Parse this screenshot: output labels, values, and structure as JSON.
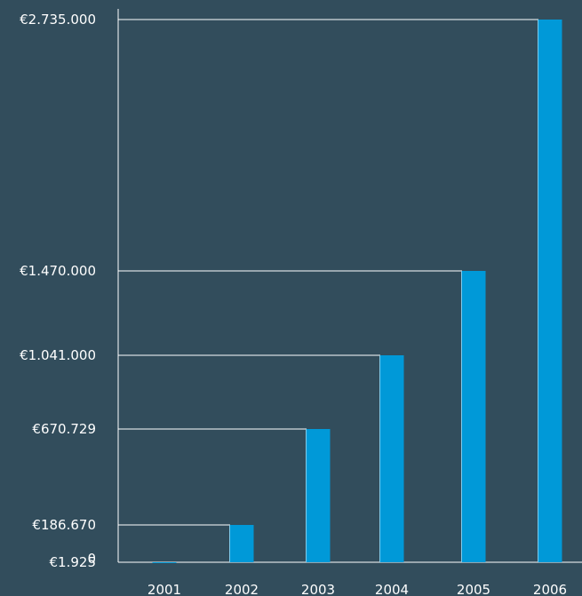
{
  "chart_data": {
    "type": "bar",
    "categories": [
      "2001",
      "2002",
      "2003",
      "2004",
      "2005",
      "2006"
    ],
    "values": [
      1925,
      186670,
      670729,
      1041000,
      1470000,
      2735000
    ],
    "value_labels": [
      "€1.925",
      "€186.670",
      "€670.729",
      "€1.041.000",
      "€1.470.000",
      "€2.735.000"
    ],
    "zero_label": "0",
    "title": "",
    "xlabel": "",
    "ylabel": "",
    "grid": false,
    "legend": "none",
    "colors": {
      "background": "#324d5c",
      "bar": "#0099d8",
      "axis": "#ffffff",
      "text": "#ffffff"
    }
  }
}
